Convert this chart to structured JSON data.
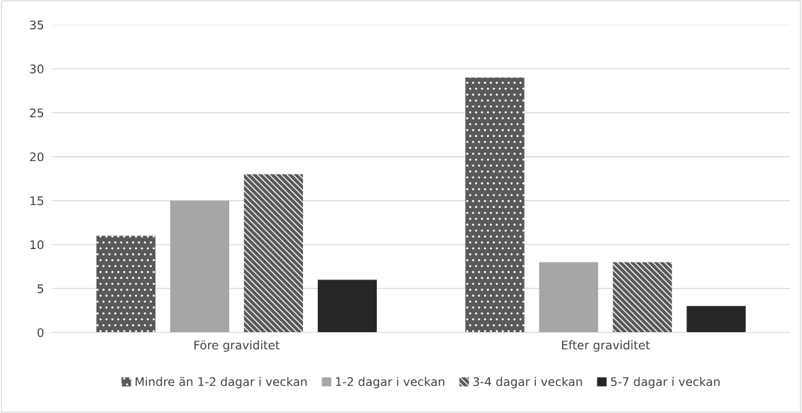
{
  "chart_data": {
    "type": "bar",
    "categories": [
      "Före graviditet",
      "Efter graviditet"
    ],
    "series": [
      {
        "name": "Mindre än 1-2 dagar i veckan",
        "color": "#595959",
        "values": [
          11,
          29
        ]
      },
      {
        "name": "1-2 dagar i veckan",
        "color": "#a6a6a6",
        "values": [
          15,
          8
        ]
      },
      {
        "name": "3-4 dagar i veckan",
        "color": "#595959",
        "values": [
          18,
          8
        ]
      },
      {
        "name": "5-7 dagar i veckan",
        "color": "#262626",
        "values": [
          6,
          3
        ]
      }
    ],
    "ylim": [
      0,
      35
    ],
    "yticks": [
      0,
      5,
      10,
      15,
      20,
      25,
      30,
      35
    ],
    "grid": "y",
    "legend": "bottom"
  }
}
